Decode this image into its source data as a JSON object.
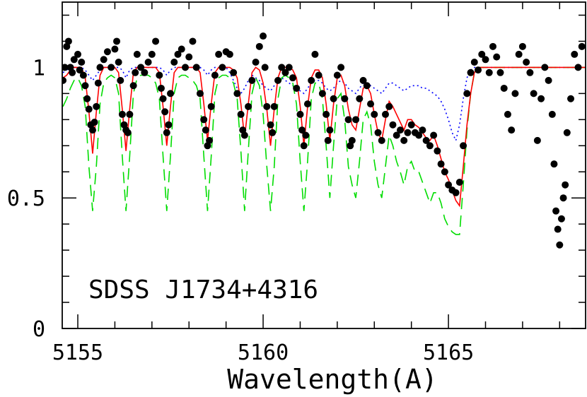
{
  "chart_data": {
    "type": "spectrum",
    "annotation": "SDSS J1734+4316",
    "x_label": "Wavelength(A)",
    "xlim": [
      5154.58,
      5168.7
    ],
    "ylim": [
      0,
      1.25
    ],
    "xticks": [
      5155,
      5160,
      5165
    ],
    "yticks": [
      0,
      0.5,
      1
    ],
    "xminorticks": [
      5156,
      5157,
      5158,
      5159,
      5161,
      5162,
      5163,
      5164,
      5166,
      5167,
      5168
    ],
    "yminorticks": [
      0.1,
      0.2,
      0.3,
      0.4,
      0.6,
      0.7,
      0.8,
      0.9,
      1.1,
      1.2
    ],
    "x": [
      5154.6,
      5154.7,
      5154.8,
      5154.9,
      5155.0,
      5155.1,
      5155.2,
      5155.3,
      5155.4,
      5155.5,
      5155.6,
      5155.7,
      5155.8,
      5155.9,
      5156.0,
      5156.1,
      5156.2,
      5156.3,
      5156.4,
      5156.5,
      5156.6,
      5156.7,
      5156.8,
      5156.9,
      5157.0,
      5157.1,
      5157.2,
      5157.3,
      5157.4,
      5157.5,
      5157.6,
      5157.7,
      5157.8,
      5157.9,
      5158.0,
      5158.1,
      5158.2,
      5158.3,
      5158.4,
      5158.5,
      5158.6,
      5158.7,
      5158.8,
      5158.9,
      5159.0,
      5159.1,
      5159.2,
      5159.3,
      5159.4,
      5159.5,
      5159.6,
      5159.7,
      5159.8,
      5159.9,
      5160.0,
      5160.1,
      5160.2,
      5160.3,
      5160.4,
      5160.5,
      5160.6,
      5160.7,
      5160.8,
      5160.9,
      5161.0,
      5161.1,
      5161.2,
      5161.3,
      5161.4,
      5161.5,
      5161.6,
      5161.7,
      5161.8,
      5161.9,
      5162.0,
      5162.1,
      5162.2,
      5162.3,
      5162.4,
      5162.5,
      5162.6,
      5162.7,
      5162.8,
      5162.9,
      5163.0,
      5163.1,
      5163.2,
      5163.3,
      5163.4,
      5163.5,
      5163.6,
      5163.7,
      5163.8,
      5163.9,
      5164.0,
      5164.1,
      5164.2,
      5164.3,
      5164.4,
      5164.5,
      5164.6,
      5164.7,
      5164.8,
      5164.9,
      5165.0,
      5165.1,
      5165.2,
      5165.3,
      5165.4,
      5165.5,
      5165.6,
      5165.7,
      5165.8,
      5166.0,
      5167.0,
      5168.0,
      5168.7
    ],
    "series": [
      {
        "color": "#ff0000",
        "dash": "solid",
        "values": [
          0.96,
          0.97,
          0.99,
          1.0,
          1.0,
          1.0,
          0.96,
          0.83,
          0.67,
          0.83,
          0.97,
          1.0,
          1.0,
          1.0,
          1.0,
          0.98,
          0.84,
          0.68,
          0.84,
          0.98,
          1.0,
          1.0,
          1.0,
          1.0,
          1.0,
          1.0,
          0.98,
          0.85,
          0.7,
          0.85,
          0.98,
          1.0,
          1.0,
          1.0,
          1.0,
          1.0,
          1.0,
          0.98,
          0.86,
          0.72,
          0.86,
          0.98,
          1.0,
          1.0,
          1.0,
          1.0,
          0.99,
          0.96,
          0.86,
          0.73,
          0.86,
          0.98,
          1.0,
          0.99,
          0.94,
          0.84,
          0.7,
          0.84,
          0.96,
          1.0,
          1.0,
          1.0,
          0.99,
          0.96,
          0.85,
          0.7,
          0.85,
          0.96,
          0.99,
          0.99,
          0.96,
          0.86,
          0.72,
          0.86,
          0.96,
          0.97,
          0.93,
          0.84,
          0.78,
          0.76,
          0.84,
          0.92,
          0.93,
          0.9,
          0.82,
          0.75,
          0.72,
          0.8,
          0.87,
          0.85,
          0.82,
          0.79,
          0.76,
          0.8,
          0.8,
          0.78,
          0.77,
          0.75,
          0.73,
          0.72,
          0.74,
          0.7,
          0.65,
          0.6,
          0.57,
          0.53,
          0.49,
          0.47,
          0.62,
          0.78,
          0.9,
          0.98,
          1.0,
          1.0,
          1.0,
          1.0,
          1.0
        ]
      },
      {
        "color": "#00dd00",
        "dash": "dashed",
        "values": [
          0.85,
          0.88,
          0.92,
          0.95,
          0.96,
          0.93,
          0.85,
          0.62,
          0.45,
          0.62,
          0.86,
          0.94,
          0.96,
          0.97,
          0.96,
          0.9,
          0.66,
          0.45,
          0.66,
          0.9,
          0.96,
          0.97,
          0.97,
          0.97,
          0.96,
          0.94,
          0.88,
          0.66,
          0.45,
          0.66,
          0.9,
          0.96,
          0.97,
          0.97,
          0.96,
          0.95,
          0.93,
          0.88,
          0.66,
          0.45,
          0.66,
          0.9,
          0.96,
          0.97,
          0.97,
          0.96,
          0.94,
          0.88,
          0.68,
          0.45,
          0.68,
          0.9,
          0.96,
          0.93,
          0.82,
          0.62,
          0.45,
          0.62,
          0.88,
          0.96,
          0.97,
          0.96,
          0.94,
          0.86,
          0.64,
          0.45,
          0.64,
          0.88,
          0.94,
          0.94,
          0.88,
          0.7,
          0.5,
          0.7,
          0.88,
          0.9,
          0.8,
          0.62,
          0.55,
          0.5,
          0.64,
          0.8,
          0.83,
          0.78,
          0.64,
          0.55,
          0.5,
          0.62,
          0.74,
          0.7,
          0.64,
          0.6,
          0.55,
          0.62,
          0.64,
          0.6,
          0.6,
          0.56,
          0.52,
          0.48,
          0.52,
          0.52,
          0.48,
          0.42,
          0.39,
          0.37,
          0.36,
          0.36,
          0.55,
          0.76,
          0.9,
          0.98,
          1.0,
          1.0,
          1.0,
          1.0,
          1.0
        ]
      },
      {
        "color": "#0000ff",
        "dash": "dotted",
        "values": [
          0.98,
          0.99,
          1,
          1,
          1,
          1,
          0.99,
          0.97,
          0.95,
          0.97,
          0.99,
          1,
          1,
          1,
          1,
          1,
          0.99,
          0.96,
          0.99,
          1,
          1,
          1,
          1,
          1,
          1,
          1,
          1,
          0.99,
          0.97,
          0.99,
          1,
          1,
          1,
          1,
          1,
          1,
          1,
          1,
          0.99,
          0.97,
          0.99,
          1,
          1,
          1,
          1,
          0.98,
          0.95,
          0.92,
          0.9,
          0.92,
          0.95,
          0.97,
          0.96,
          0.95,
          0.93,
          0.92,
          0.91,
          0.93,
          0.95,
          0.96,
          0.95,
          0.94,
          0.93,
          0.92,
          0.91,
          0.9,
          0.92,
          0.94,
          0.95,
          0.95,
          0.94,
          0.92,
          0.91,
          0.92,
          0.94,
          0.95,
          0.94,
          0.92,
          0.91,
          0.9,
          0.92,
          0.94,
          0.94,
          0.93,
          0.92,
          0.91,
          0.9,
          0.92,
          0.94,
          0.94,
          0.93,
          0.92,
          0.91,
          0.92,
          0.93,
          0.93,
          0.93,
          0.92,
          0.92,
          0.91,
          0.9,
          0.89,
          0.87,
          0.84,
          0.8,
          0.75,
          0.72,
          0.78,
          0.88,
          0.96,
          0.99,
          1.0,
          1.0,
          1,
          1,
          1,
          1
        ]
      }
    ],
    "points": {
      "color": "#000000",
      "x": [
        5154.6,
        5154.65,
        5154.7,
        5154.75,
        5154.8,
        5154.85,
        5154.9,
        5155.0,
        5155.05,
        5155.1,
        5155.15,
        5155.2,
        5155.25,
        5155.3,
        5155.35,
        5155.4,
        5155.45,
        5155.5,
        5155.55,
        5155.6,
        5155.7,
        5155.8,
        5155.9,
        5156.0,
        5156.05,
        5156.1,
        5156.15,
        5156.2,
        5156.25,
        5156.3,
        5156.35,
        5156.4,
        5156.5,
        5156.55,
        5156.6,
        5156.7,
        5156.8,
        5156.9,
        5157.0,
        5157.1,
        5157.2,
        5157.25,
        5157.3,
        5157.35,
        5157.4,
        5157.45,
        5157.5,
        5157.6,
        5157.7,
        5157.8,
        5157.9,
        5158.0,
        5158.1,
        5158.2,
        5158.3,
        5158.4,
        5158.45,
        5158.5,
        5158.55,
        5158.6,
        5158.7,
        5158.8,
        5158.9,
        5159.0,
        5159.1,
        5159.2,
        5159.3,
        5159.4,
        5159.45,
        5159.5,
        5159.6,
        5159.7,
        5159.8,
        5159.9,
        5160.0,
        5160.05,
        5160.1,
        5160.2,
        5160.25,
        5160.3,
        5160.4,
        5160.5,
        5160.6,
        5160.7,
        5160.8,
        5160.9,
        5161.0,
        5161.05,
        5161.1,
        5161.15,
        5161.2,
        5161.3,
        5161.4,
        5161.5,
        5161.6,
        5161.7,
        5161.75,
        5161.8,
        5161.9,
        5162.0,
        5162.1,
        5162.2,
        5162.3,
        5162.35,
        5162.4,
        5162.5,
        5162.6,
        5162.7,
        5162.8,
        5162.9,
        5163.0,
        5163.1,
        5163.2,
        5163.3,
        5163.4,
        5163.5,
        5163.6,
        5163.7,
        5163.8,
        5163.9,
        5164.0,
        5164.1,
        5164.2,
        5164.3,
        5164.4,
        5164.5,
        5164.6,
        5164.7,
        5164.8,
        5164.9,
        5165.0,
        5165.1,
        5165.2,
        5165.3,
        5165.4,
        5165.5,
        5165.6,
        5165.7,
        5165.8,
        5165.9,
        5166.0,
        5166.1,
        5166.2,
        5166.3,
        5166.4,
        5166.5,
        5166.6,
        5166.7,
        5166.8,
        5166.9,
        5167.0,
        5167.1,
        5167.2,
        5167.3,
        5167.4,
        5167.5,
        5167.6,
        5167.7,
        5167.8,
        5167.85,
        5167.9,
        5167.95,
        5168.0,
        5168.05,
        5168.1,
        5168.15,
        5168.2,
        5168.3,
        5168.4,
        5168.5,
        5168.6
      ],
      "values": [
        0.95,
        1.0,
        1.08,
        1.1,
        1.0,
        0.98,
        1.03,
        1.05,
        0.99,
        1.02,
        0.97,
        0.93,
        0.88,
        0.84,
        0.78,
        0.76,
        0.79,
        0.85,
        0.94,
        1.0,
        1.03,
        1.06,
        1.0,
        1.07,
        1.1,
        1.02,
        0.95,
        0.82,
        0.78,
        0.76,
        0.75,
        0.82,
        0.93,
        0.98,
        1.05,
        1.0,
        0.98,
        1.02,
        1.05,
        1.1,
        0.97,
        0.92,
        0.88,
        0.83,
        0.75,
        0.78,
        0.9,
        1.02,
        1.05,
        1.07,
        1.0,
        1.04,
        1.1,
        1.0,
        0.9,
        0.8,
        0.76,
        0.7,
        0.72,
        0.85,
        0.97,
        1.05,
        1.0,
        1.06,
        1.05,
        0.98,
        0.9,
        0.82,
        0.76,
        0.74,
        0.85,
        0.95,
        1.02,
        1.08,
        1.12,
        1.0,
        0.85,
        0.78,
        0.75,
        0.85,
        0.95,
        1.0,
        0.98,
        1.0,
        0.96,
        0.92,
        0.82,
        0.76,
        0.7,
        0.74,
        0.86,
        0.95,
        1.05,
        0.97,
        0.9,
        0.82,
        0.72,
        0.76,
        0.88,
        0.97,
        1.0,
        0.88,
        0.8,
        0.7,
        0.72,
        0.8,
        0.88,
        0.95,
        0.93,
        0.86,
        0.82,
        0.75,
        0.72,
        0.82,
        0.85,
        0.78,
        0.74,
        0.76,
        0.72,
        0.75,
        0.78,
        0.75,
        0.74,
        0.76,
        0.72,
        0.7,
        0.74,
        0.68,
        0.63,
        0.6,
        0.55,
        0.53,
        0.52,
        0.56,
        0.7,
        0.9,
        0.98,
        1.02,
        0.99,
        1.05,
        1.03,
        0.98,
        1.08,
        1.04,
        0.98,
        0.92,
        0.82,
        0.76,
        0.9,
        1.05,
        1.08,
        1.02,
        0.98,
        0.9,
        0.72,
        0.88,
        1.0,
        0.95,
        0.82,
        0.63,
        0.45,
        0.38,
        0.32,
        0.42,
        0.5,
        0.55,
        0.75,
        0.88,
        1.05,
        1.0,
        1.08
      ]
    }
  }
}
